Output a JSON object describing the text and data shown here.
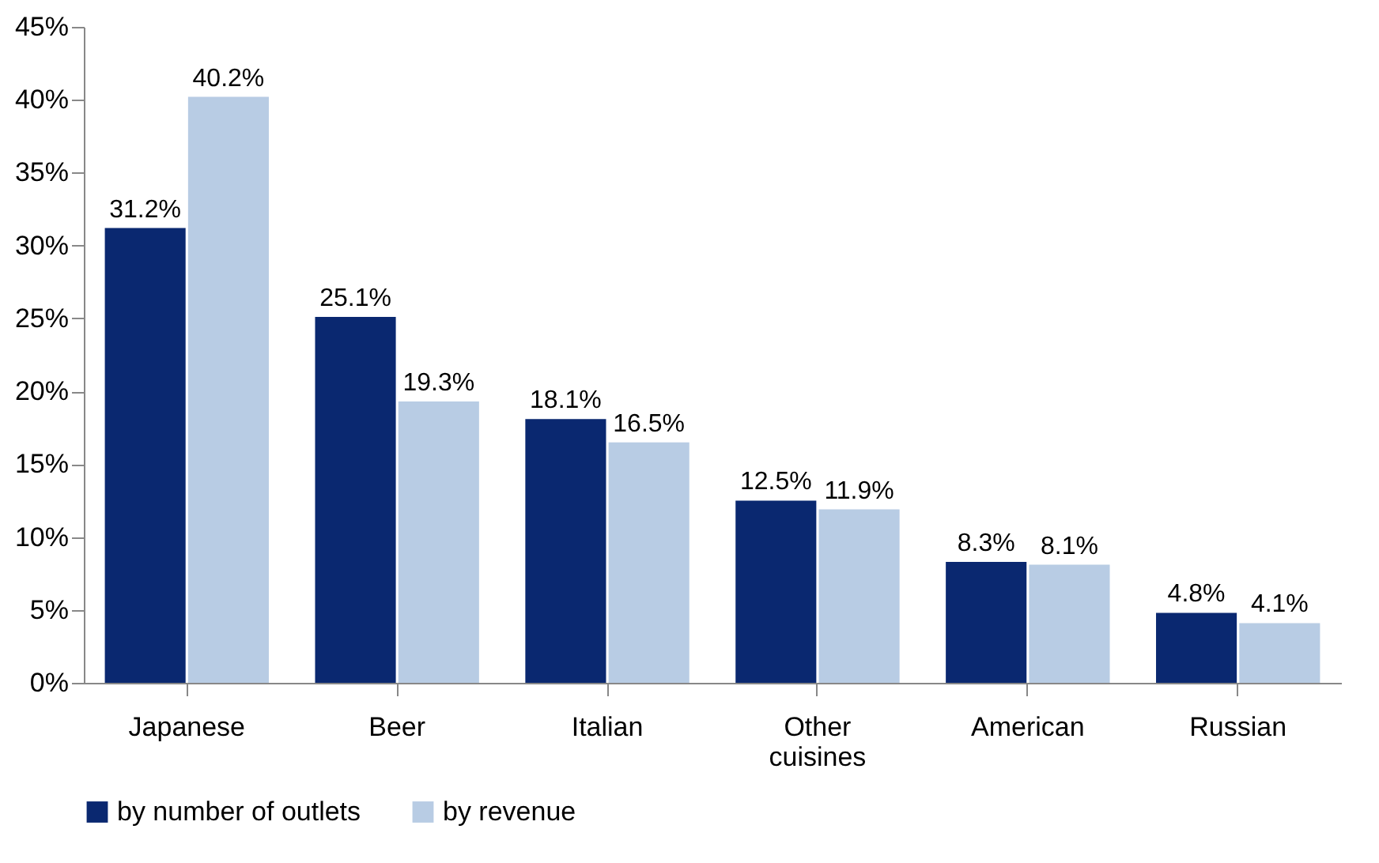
{
  "chart_data": {
    "type": "bar",
    "categories": [
      "Japanese",
      "Beer",
      "Italian",
      "Other cuisines",
      "American",
      "Russian"
    ],
    "series": [
      {
        "name": "by number of outlets",
        "color": "#0a2870",
        "values": [
          31.2,
          25.1,
          18.1,
          12.5,
          8.3,
          4.8
        ],
        "value_labels": [
          "31.2%",
          "25.1%",
          "18.1%",
          "12.5%",
          "8.3%",
          "4.8%"
        ]
      },
      {
        "name": "by revenue",
        "color": "#b8cce4",
        "values": [
          40.2,
          19.3,
          16.5,
          11.9,
          8.1,
          4.1
        ],
        "value_labels": [
          "40.2%",
          "19.3%",
          "16.5%",
          "11.9%",
          "8.1%",
          "4.1%"
        ]
      }
    ],
    "ylim": [
      0,
      45
    ],
    "yticks": [
      {
        "value": 0,
        "label": "0%"
      },
      {
        "value": 5,
        "label": "5%"
      },
      {
        "value": 10,
        "label": "10%"
      },
      {
        "value": 15,
        "label": "15%"
      },
      {
        "value": 20,
        "label": "20%"
      },
      {
        "value": 25,
        "label": "25%"
      },
      {
        "value": 30,
        "label": "30%"
      },
      {
        "value": 35,
        "label": "35%"
      },
      {
        "value": 40,
        "label": "40%"
      },
      {
        "value": 45,
        "label": "45%"
      }
    ],
    "grid": false,
    "legend": "bottom"
  }
}
